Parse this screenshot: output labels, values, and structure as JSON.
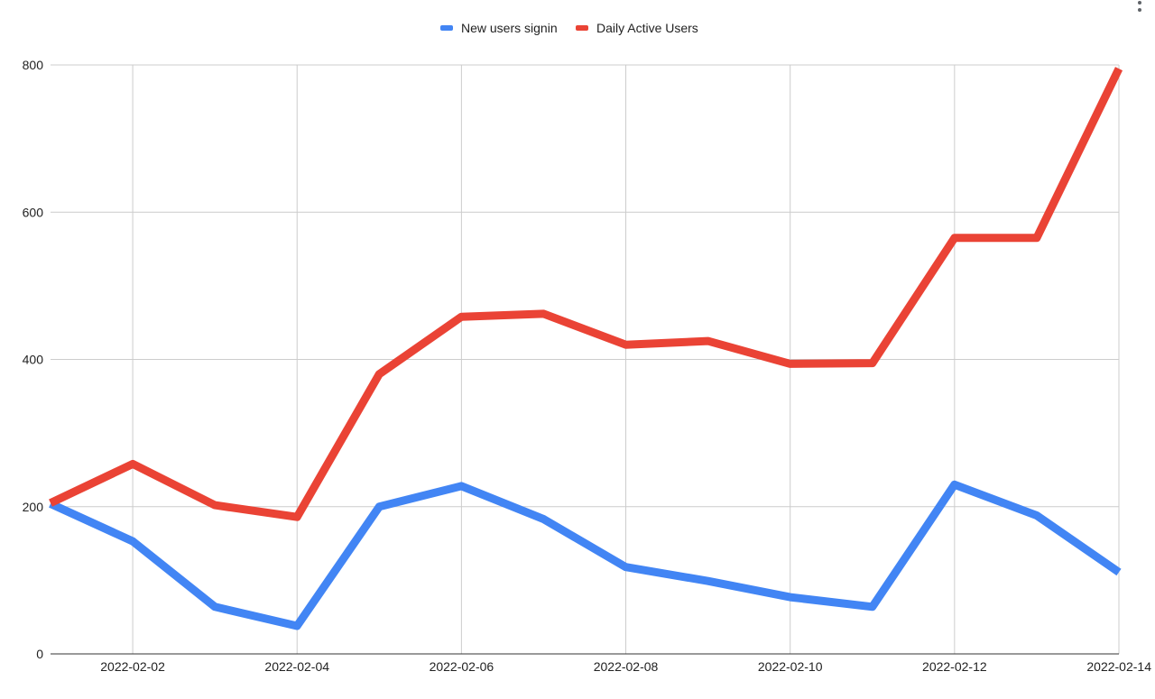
{
  "chart_data": {
    "type": "line",
    "title": "",
    "xlabel": "",
    "ylabel": "",
    "x": [
      "2022-02-01",
      "2022-02-02",
      "2022-02-03",
      "2022-02-04",
      "2022-02-05",
      "2022-02-06",
      "2022-02-07",
      "2022-02-08",
      "2022-02-09",
      "2022-02-10",
      "2022-02-11",
      "2022-02-12",
      "2022-02-13",
      "2022-02-14"
    ],
    "x_tick_labels": [
      "2022-02-02",
      "2022-02-04",
      "2022-02-06",
      "2022-02-08",
      "2022-02-10",
      "2022-02-12",
      "2022-02-14"
    ],
    "y_ticks": [
      0,
      200,
      400,
      600,
      800
    ],
    "ylim": [
      0,
      800
    ],
    "grid": true,
    "legend_position": "top",
    "series": [
      {
        "name": "New users signin",
        "color": "#4285f4",
        "values": [
          204,
          153,
          64,
          38,
          200,
          228,
          183,
          118,
          99,
          77,
          64,
          230,
          188,
          111
        ]
      },
      {
        "name": "Daily Active Users",
        "color": "#ea4335",
        "values": [
          205,
          258,
          202,
          186,
          380,
          458,
          462,
          420,
          425,
          394,
          395,
          565,
          565,
          795
        ]
      }
    ]
  }
}
